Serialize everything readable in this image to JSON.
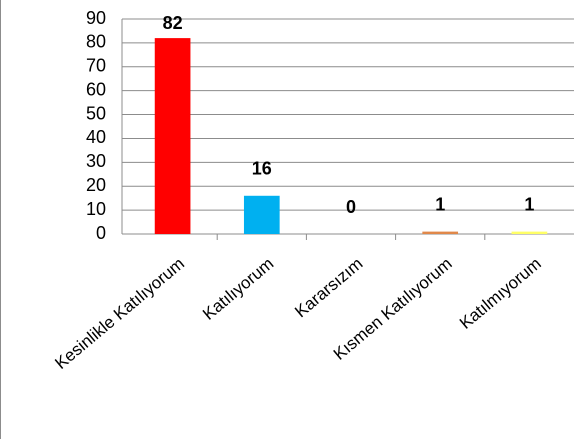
{
  "chart_data": {
    "type": "bar",
    "categories": [
      "Kesinlikle Katılıyorum",
      "Katılıyorum",
      "Kararsızım",
      "Kısmen Katılıyorum",
      "Katılmıyorum"
    ],
    "values": [
      82,
      16,
      0,
      1,
      1
    ],
    "colors": [
      "#ff0000",
      "#00b0f0",
      "#7f7f7f",
      "#e0884a",
      "#ffff66"
    ],
    "ylim": [
      0,
      90
    ],
    "yticks": [
      0,
      10,
      20,
      30,
      40,
      50,
      60,
      70,
      80,
      90
    ],
    "grid": true
  }
}
